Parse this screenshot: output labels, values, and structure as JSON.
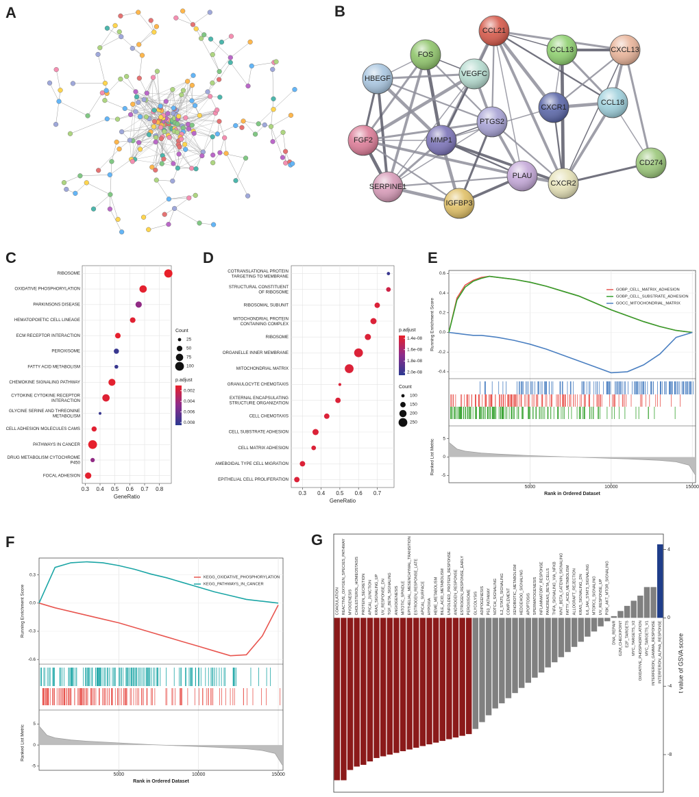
{
  "panel_labels": [
    "A",
    "B",
    "C",
    "D",
    "E",
    "F",
    "G"
  ],
  "network": {
    "nodes": [
      {
        "label": "CCL21",
        "color": "#d65a4b"
      },
      {
        "label": "FOS",
        "color": "#8fc46b"
      },
      {
        "label": "VEGFC",
        "color": "#b6dcd0"
      },
      {
        "label": "HBEGF",
        "color": "#a9c6e0"
      },
      {
        "label": "CCL13",
        "color": "#8fd070"
      },
      {
        "label": "CXCL13",
        "color": "#e9b49a"
      },
      {
        "label": "CXCR1",
        "color": "#5b67a8"
      },
      {
        "label": "CCL18",
        "color": "#9fd0dc"
      },
      {
        "label": "PTGS2",
        "color": "#a7a2d4"
      },
      {
        "label": "MMP1",
        "color": "#7c74b8"
      },
      {
        "label": "FGF2",
        "color": "#dc7d98"
      },
      {
        "label": "CD274",
        "color": "#9bc77a"
      },
      {
        "label": "PLAU",
        "color": "#c4a8d8"
      },
      {
        "label": "CXCR2",
        "color": "#e6e2b8"
      },
      {
        "label": "SERPINE1",
        "color": "#d79bb8"
      },
      {
        "label": "IGFBP3",
        "color": "#e0c067"
      }
    ]
  },
  "chart_data": [
    {
      "type": "dot",
      "categories": [
        "RIBOSOME",
        "OXIDATIVE PHOSPHORYLATION",
        "PARKINSONS DISEASE",
        "HEMATOPOIETIC CELL LINEAGE",
        "ECM RECEPTOR INTERACTION",
        "PEROXISOME",
        "FATTY ACID METABOLISM",
        "CHEMOKINE SIGNALING PATHWAY",
        "CYTOKINE CYTOKINE RECEPTOR\nINTERACTION",
        "GLYCINE SERINE AND THREONINE\nMETABOLISM",
        "CELL ADHESION MOLECULES CAMS",
        "PATHWAYS IN CANCER",
        "DRUG METABOLISM CYTOCHROME\nP450",
        "FOCAL ADHESION"
      ],
      "values": [
        0.86,
        0.69,
        0.66,
        0.62,
        0.52,
        0.51,
        0.51,
        0.48,
        0.44,
        0.4,
        0.36,
        0.35,
        0.35,
        0.32
      ],
      "sizes": [
        90,
        75,
        60,
        50,
        50,
        45,
        30,
        70,
        75,
        20,
        45,
        100,
        35,
        60
      ],
      "p_adjust": [
        0.001,
        0.0012,
        0.0045,
        0.0013,
        0.0011,
        0.008,
        0.008,
        0.0012,
        0.0014,
        0.008,
        0.0013,
        0.0011,
        0.0045,
        0.0012
      ],
      "xlabel": "GeneRatio",
      "xlim": [
        0.28,
        0.88
      ],
      "xticks": [
        0.3,
        0.4,
        0.5,
        0.6,
        0.7,
        0.8
      ],
      "size_title": "Count",
      "size_ticks": [
        25,
        50,
        75,
        100
      ],
      "color_title": "p.adjust",
      "clim": [
        0.001,
        0.0085
      ],
      "cticks": [
        0.002,
        0.004,
        0.006,
        0.008
      ],
      "cmap": [
        "#e8202a",
        "#8b2c8c",
        "#2b3990"
      ],
      "grid": true
    },
    {
      "type": "dot",
      "categories": [
        "COTRANSLATIONAL PROTEIN\nTARGETING TO MEMBRANE",
        "STRUCTURAL CONSTITUENT\nOF RIBOSOME",
        "RIBOSOMAL SUBUNIT",
        "MITOCHONDRIAL PROTEIN\nCONTAINING COMPLEX",
        "RIBOSOME",
        "ORGANELLE INNER MEMBRANE",
        "MITOCHONDRIAL MATRIX",
        "GRANULOCYTE CHEMOTAXIS",
        "EXTERNAL ENCAPSULATING\nSTRUCTURE ORGANIZATION",
        "CELL CHEMOTAXIS",
        "CELL SUBSTRATE ADHESION",
        "CELL MATRIX ADHESION",
        "AMEBOIDAL TYPE CELL MIGRATION",
        "EPITHELIAL CELL PROLIFERATION"
      ],
      "values": [
        0.76,
        0.76,
        0.7,
        0.68,
        0.65,
        0.6,
        0.55,
        0.5,
        0.49,
        0.43,
        0.37,
        0.36,
        0.3,
        0.27
      ],
      "sizes": [
        100,
        130,
        150,
        170,
        170,
        250,
        250,
        90,
        150,
        150,
        170,
        130,
        150,
        150
      ],
      "p_adjust": [
        2e-08,
        1.45e-08,
        1.4e-08,
        1.4e-08,
        1.4e-08,
        1.4e-08,
        1.4e-08,
        1.4e-08,
        1.4e-08,
        1.4e-08,
        1.4e-08,
        1.4e-08,
        1.4e-08,
        1.4e-08
      ],
      "xlabel": "GeneRatio",
      "xlim": [
        0.24,
        0.79
      ],
      "xticks": [
        0.3,
        0.4,
        0.5,
        0.6,
        0.7
      ],
      "size_title": "Count",
      "size_ticks": [
        100,
        150,
        200,
        250
      ],
      "color_title": "p.adjust",
      "clim": [
        1.35e-08,
        2.05e-08
      ],
      "cticks": [
        {
          "value": 1.4e-08,
          "label": "1.4e-08"
        },
        {
          "value": 1.6e-08,
          "label": "1.6e-08"
        },
        {
          "value": 1.8e-08,
          "label": "1.8e-08"
        },
        {
          "value": 2e-08,
          "label": "2.0e-08"
        }
      ],
      "cmap": [
        "#e8202a",
        "#8b2c8c",
        "#2b3990"
      ],
      "grid": true
    },
    {
      "type": "gsea",
      "ylabel": "Running Enrichment Score",
      "xlabel": "Rank in Ordered Dataset",
      "xlim": [
        0,
        15200
      ],
      "xticks": [
        5000,
        10000,
        15000
      ],
      "ylim": [
        -0.47,
        0.63
      ],
      "yticks": [
        -0.4,
        -0.2,
        {
          "value": 0,
          "label": "0.0"
        },
        0.2,
        0.4,
        0.6
      ],
      "legend": "upper right",
      "series": [
        {
          "name": "GOBP_CELL_MATRIX_ADHESION",
          "color": "#e8554f",
          "x": [
            0,
            500,
            1000,
            1500,
            2000,
            2500,
            3000,
            4000,
            5000,
            6000,
            7000,
            8000,
            9000,
            10000,
            11000,
            12000,
            13000,
            14000,
            15000
          ],
          "values": [
            0,
            0.35,
            0.48,
            0.53,
            0.56,
            0.57,
            0.56,
            0.54,
            0.51,
            0.47,
            0.42,
            0.37,
            0.3,
            0.23,
            0.17,
            0.11,
            0.06,
            0.02,
            0
          ]
        },
        {
          "name": "GOBP_CELL_SUBSTRATE_ADHESION",
          "color": "#33a02c",
          "x": [
            0,
            500,
            1000,
            1500,
            2000,
            2500,
            3000,
            4000,
            5000,
            6000,
            7000,
            8000,
            9000,
            10000,
            11000,
            12000,
            13000,
            14000,
            15000
          ],
          "values": [
            0,
            0.33,
            0.46,
            0.52,
            0.55,
            0.57,
            0.56,
            0.54,
            0.51,
            0.47,
            0.42,
            0.37,
            0.3,
            0.23,
            0.17,
            0.11,
            0.06,
            0.02,
            0
          ]
        },
        {
          "name": "GOCC_MITOCHONDRIAL_MATRIX",
          "color": "#4a7fc1",
          "x": [
            0,
            500,
            1000,
            1500,
            2000,
            2500,
            3000,
            4000,
            5000,
            6000,
            7000,
            8000,
            9000,
            10000,
            11000,
            12000,
            13000,
            14000,
            15000
          ],
          "values": [
            0,
            -0.01,
            -0.02,
            -0.03,
            -0.03,
            -0.04,
            -0.05,
            -0.08,
            -0.12,
            -0.17,
            -0.23,
            -0.29,
            -0.35,
            -0.41,
            -0.4,
            -0.33,
            -0.22,
            -0.05,
            0
          ]
        }
      ],
      "metric": {
        "ylabel": "Ranked List Metric",
        "ylim": [
          -7,
          7
        ],
        "yticks": [
          -5,
          0,
          5
        ],
        "x": [
          0,
          500,
          1000,
          2000,
          3000,
          5000,
          7000,
          9000,
          11000,
          13000,
          14000,
          14800,
          15200
        ],
        "values": [
          4,
          2.2,
          1.6,
          1.1,
          0.8,
          0.4,
          0.1,
          -0.2,
          -0.5,
          -0.9,
          -1.3,
          -2.2,
          -5
        ]
      }
    },
    {
      "type": "gsea",
      "ylabel": "Running Enrichment Score",
      "xlabel": "Rank in Ordered Dataset",
      "xlim": [
        0,
        15300
      ],
      "xticks": [
        5000,
        10000,
        15000
      ],
      "ylim": [
        -0.65,
        0.48
      ],
      "yticks": [
        -0.6,
        -0.3,
        {
          "value": 0,
          "label": "0.0"
        },
        0.3
      ],
      "legend": "upper right",
      "series": [
        {
          "name": "KEGG_OXIDATIVE_PHOSPHORYLATION",
          "color": "#e8554f",
          "x": [
            0,
            1000,
            2000,
            3000,
            4000,
            5000,
            6000,
            7000,
            8000,
            9000,
            10000,
            11000,
            12000,
            13000,
            14000,
            15000
          ],
          "values": [
            0,
            -0.05,
            -0.09,
            -0.13,
            -0.17,
            -0.21,
            -0.26,
            -0.31,
            -0.36,
            -0.41,
            -0.46,
            -0.51,
            -0.56,
            -0.55,
            -0.35,
            -0.02
          ]
        },
        {
          "name": "KEGG_PATHWAYS_IN_CANCER",
          "color": "#1aa5a5",
          "x": [
            0,
            1000,
            2000,
            3000,
            4000,
            5000,
            6000,
            7000,
            8000,
            9000,
            10000,
            11000,
            12000,
            13000,
            14000,
            15000
          ],
          "values": [
            0,
            0.38,
            0.43,
            0.44,
            0.43,
            0.4,
            0.36,
            0.31,
            0.27,
            0.22,
            0.17,
            0.12,
            0.08,
            0.04,
            0.02,
            0
          ]
        }
      ],
      "metric": {
        "ylabel": "Ranked List Metric",
        "ylim": [
          -6,
          7
        ],
        "yticks": [
          -5,
          0,
          5
        ],
        "x": [
          0,
          500,
          1000,
          2000,
          3000,
          5000,
          7000,
          9000,
          11000,
          13000,
          14000,
          14800,
          15300
        ],
        "values": [
          4.5,
          2.3,
          1.7,
          1.2,
          0.9,
          0.5,
          0.1,
          -0.2,
          -0.5,
          -0.9,
          -1.3,
          -2,
          -5
        ]
      }
    },
    {
      "type": "waterfall",
      "ylabel": "t value of GSVA score",
      "ylim": [
        -10.2,
        4.9
      ],
      "yticks": [
        -8,
        -4,
        0,
        4
      ],
      "categories": [
        "COAGULATION",
        "REACTIVE_OXYGEN_SPECIES_PATHWAY",
        "MYOGENESIS",
        "CHOLESTEROL_HOMEOSTASIS",
        "PROTEIN_SECRETION",
        "APICAL_JUNCTION",
        "KRAS_SIGNALING_UP",
        "UV_RESPONSE_DN",
        "TGF_BETA_SIGNALING",
        "ANGIOGENESIS",
        "MITOTIC_SPINDLE",
        "EPITHELIAL_MESENCHYMAL_TRANSITION",
        "ESTROGEN_RESPONSE_LATE",
        "APICAL_SURFACE",
        "HYPOXIA",
        "HEME_METABOLISM",
        "BILE_ACID_METABOLISM",
        "UNFOLDED_PROTEIN_RESPONSE",
        "ANDROGEN_RESPONSE",
        "ESTROGEN_RESPONSE_EARLY",
        "PEROXISOME",
        "GLYCOLYSIS",
        "ADIPOGENESIS",
        "P53_PATHWAY",
        "NOTCH_SIGNALING",
        "IL2_STAT5_SIGNALING",
        "COMPLEMENT",
        "XENOBIOTIC_METABOLISM",
        "HEDGEHOG_SIGNALING",
        "APOPTOSIS",
        "SPERMATOGENESIS",
        "INFLAMMATORY_RESPONSE",
        "PANCREAS_BETA_CELLS",
        "TNFA_SIGNALING_VIA_NFKB",
        "WNT_BETA_CATENIN_SIGNALING",
        "FATTY_ACID_METABOLISM",
        "ALLOGRAFT_REJECTION",
        "KRAS_SIGNALING_DN",
        "IL6_JAK_STAT3_SIGNALING",
        "MTORC1_SIGNALING",
        "UV_RESPONSE_UP",
        "PI3K_AKT_MTOR_SIGNALING",
        "DNA_REPAIR",
        "G2M_CHECKPOINT",
        "E2F_TARGETS",
        "MYC_TARGETS_V2",
        "OXIDATIVE_PHOSPHORYLATION",
        "MYC_TARGETS_V1",
        "INTERFERON_GAMMA_RESPONSE",
        "INTERFERON_ALPHA_RESPONSE"
      ],
      "values": [
        -9.5,
        -9.5,
        -8.9,
        -8.7,
        -8.6,
        -8.4,
        -8.2,
        -8.1,
        -8.0,
        -7.9,
        -7.8,
        -7.7,
        -7.6,
        -7.5,
        -7.4,
        -7.3,
        -7.2,
        -7.1,
        -7.0,
        -6.9,
        -6.8,
        -6.5,
        -6.1,
        -5.7,
        -5.3,
        -5.0,
        -4.7,
        -4.4,
        -4.1,
        -3.8,
        -3.5,
        -3.2,
        -2.9,
        -2.6,
        -2.3,
        -2.0,
        -1.7,
        -1.4,
        -1.1,
        -0.8,
        -0.5,
        -0.2,
        0.1,
        0.4,
        0.7,
        1.0,
        1.3,
        1.8,
        1.8,
        4.3
      ],
      "colors": [
        "#8b1a1a",
        "#8b1a1a",
        "#8b1a1a",
        "#8b1a1a",
        "#8b1a1a",
        "#8b1a1a",
        "#8b1a1a",
        "#8b1a1a",
        "#8b1a1a",
        "#8b1a1a",
        "#8b1a1a",
        "#8b1a1a",
        "#8b1a1a",
        "#8b1a1a",
        "#8b1a1a",
        "#8b1a1a",
        "#8b1a1a",
        "#8b1a1a",
        "#8b1a1a",
        "#8b1a1a",
        "#8b1a1a",
        "#808080",
        "#808080",
        "#808080",
        "#808080",
        "#808080",
        "#808080",
        "#808080",
        "#808080",
        "#808080",
        "#808080",
        "#808080",
        "#808080",
        "#808080",
        "#808080",
        "#808080",
        "#808080",
        "#808080",
        "#808080",
        "#808080",
        "#808080",
        "#808080",
        "#808080",
        "#808080",
        "#808080",
        "#808080",
        "#808080",
        "#808080",
        "#808080",
        "#1f3d8a"
      ]
    }
  ]
}
